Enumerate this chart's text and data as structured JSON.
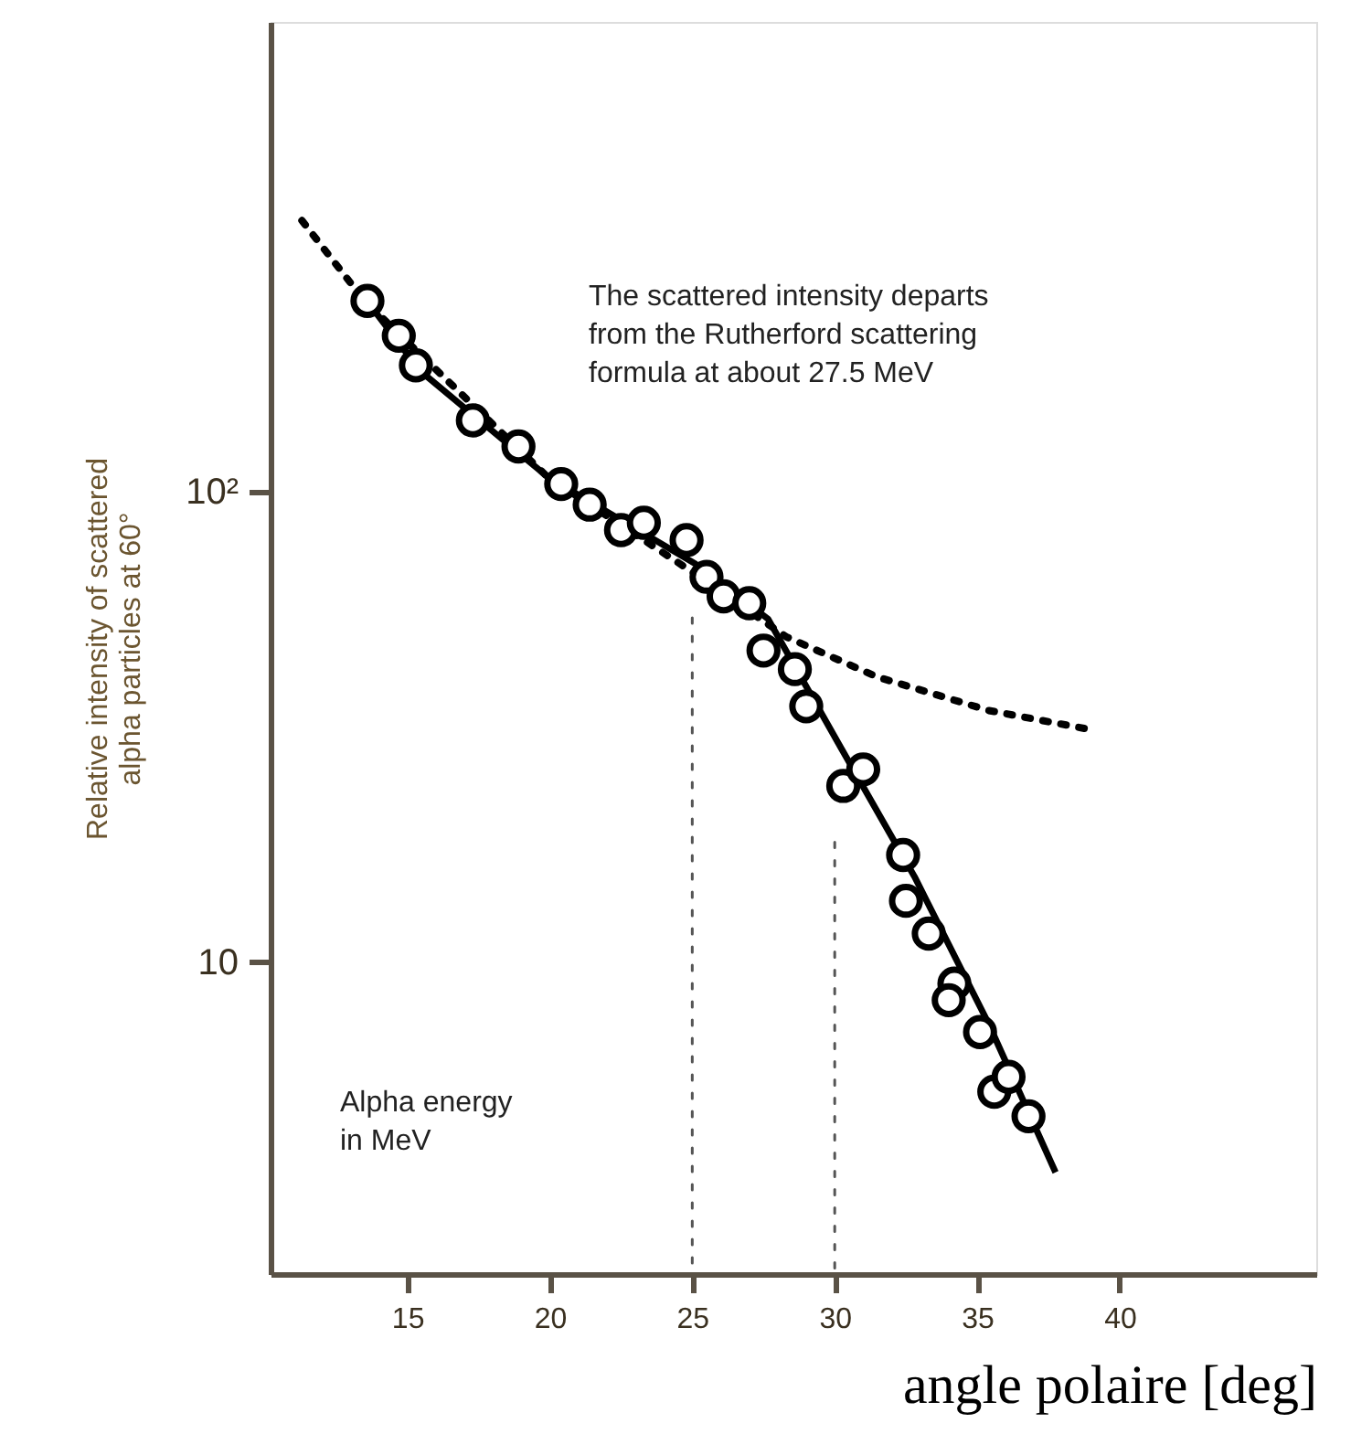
{
  "chart_data": {
    "type": "scatter",
    "xlabel": "angle polaire [deg]",
    "ylabel": "Relative intensity of scattered\nalpha particles at 60°",
    "xlim": [
      10.2,
      46.9
    ],
    "xticks": [
      15,
      20,
      25,
      30,
      35,
      40
    ],
    "ylim": [
      2.17,
      1000
    ],
    "yticks": [
      10,
      {
        "value": 100,
        "label": "10²"
      }
    ],
    "log": true,
    "grid": false,
    "annotations": [
      "The scattered intensity departs\nfrom the Rutherford scattering\nformula at about 27.5 MeV",
      "Alpha energy\nin MeV"
    ],
    "series": [
      {
        "type": "line",
        "color": "#000000",
        "line_style": "dotted",
        "x": [
          11.3,
          13.5,
          19.9,
          25.1,
          28.3,
          31.5,
          35.4,
          38.9
        ],
        "values": [
          378,
          255,
          108,
          67,
          49.2,
          40.4,
          34.3,
          31.3
        ]
      },
      {
        "type": "line",
        "color": "#000000",
        "line_style": "solid",
        "x": [
          13.5,
          15.45,
          19.9,
          25.1,
          27.66,
          30.2,
          32.8,
          35.4,
          37.75
        ],
        "values": [
          259,
          181,
          108,
          70.4,
          53.7,
          28.7,
          15.2,
          7.4,
          3.57
        ]
      },
      {
        "type": "line",
        "color": "#555555",
        "line_style": "dotted",
        "x": [
          25,
          25
        ],
        "values": [
          54,
          2.17
        ]
      },
      {
        "type": "line",
        "color": "#555555",
        "line_style": "dotted",
        "x": [
          30,
          30
        ],
        "values": [
          18,
          2.17
        ]
      },
      {
        "color": "#000000",
        "marker": "circle",
        "x": [
          13.6,
          14.7,
          15.3,
          17.3,
          18.9,
          20.4,
          21.4,
          22.5,
          23.3,
          24.8,
          25.5,
          26.1,
          27.0,
          27.5,
          28.6,
          29.0,
          30.3,
          31.0,
          32.4,
          32.5,
          33.3,
          34.2,
          34.0,
          35.1,
          35.6,
          36.1,
          36.8
        ],
        "values": [
          255,
          215,
          186,
          142,
          125,
          104,
          94,
          83,
          86,
          79,
          66,
          60,
          58,
          46,
          42,
          35,
          23.7,
          25.7,
          16.9,
          13.5,
          11.5,
          9.0,
          8.3,
          7.1,
          5.3,
          5.7,
          4.7
        ]
      }
    ]
  }
}
